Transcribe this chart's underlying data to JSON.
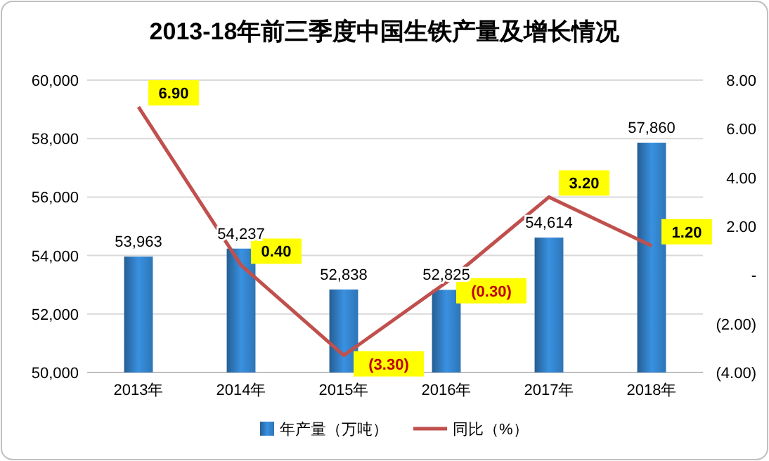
{
  "chart_data": {
    "type": "bar",
    "title": "2013-18年前三季度中国生铁产量及增长情况",
    "categories": [
      "2013年",
      "2014年",
      "2015年",
      "2016年",
      "2017年",
      "2018年"
    ],
    "series": [
      {
        "name": "年产量（万吨）",
        "color": "#2e75b6",
        "values": [
          53963,
          54237,
          52838,
          52825,
          54614,
          57860
        ],
        "value_labels": [
          "53,963",
          "54,237",
          "52,838",
          "52,825",
          "54,614",
          "57,860"
        ]
      },
      {
        "name": "同比（%）",
        "type": "line",
        "axis": "y2",
        "color": "#c0504d",
        "values": [
          6.9,
          0.4,
          -3.3,
          -0.3,
          3.2,
          1.2
        ],
        "value_labels": [
          "6.90",
          "0.40",
          "(3.30)",
          "(0.30)",
          "3.20",
          "1.20"
        ]
      }
    ],
    "ylim": [
      50000,
      60000
    ],
    "yticks": [
      {
        "value": 50000,
        "label": "50,000"
      },
      {
        "value": 52000,
        "label": "52,000"
      },
      {
        "value": 54000,
        "label": "54,000"
      },
      {
        "value": 56000,
        "label": "56,000"
      },
      {
        "value": 58000,
        "label": "58,000"
      },
      {
        "value": 60000,
        "label": "60,000"
      }
    ],
    "y2lim": [
      -4,
      8
    ],
    "y2ticks": [
      {
        "value": -4,
        "label": "(4.00)"
      },
      {
        "value": -2,
        "label": "(2.00)"
      },
      {
        "value": 0,
        "label": "-"
      },
      {
        "value": 2,
        "label": "2.00"
      },
      {
        "value": 4,
        "label": "4.00"
      },
      {
        "value": 6,
        "label": "6.00"
      },
      {
        "value": 8,
        "label": "8.00"
      }
    ],
    "grid": "y",
    "legend": "bottom",
    "marker": "none",
    "line_style": "solid"
  }
}
